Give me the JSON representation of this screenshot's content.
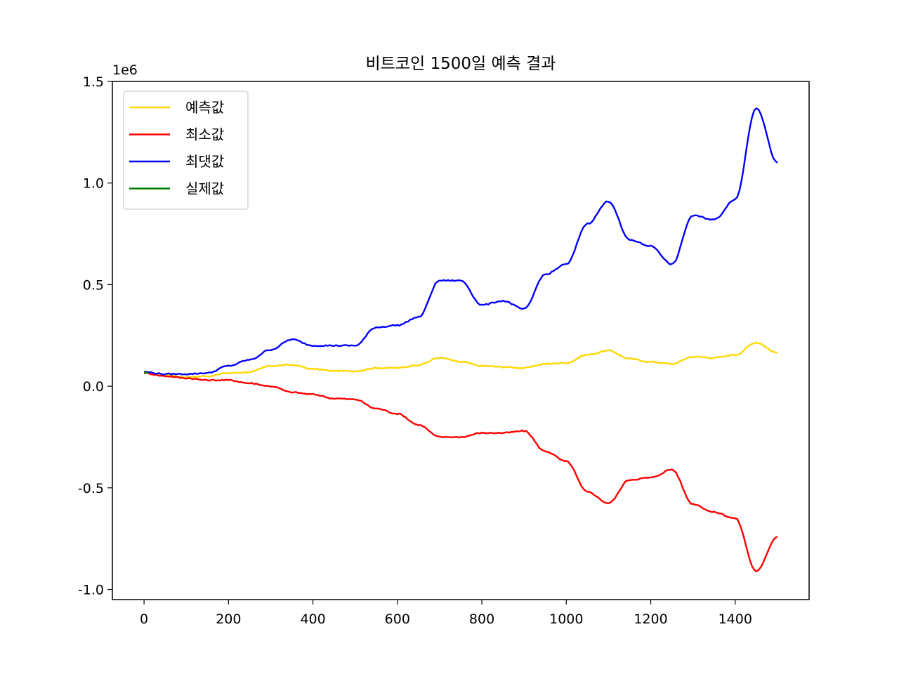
{
  "chart_data": {
    "type": "line",
    "title": "비트코인 1500일 예측 결과",
    "xlabel": "",
    "ylabel": "",
    "offset_label": "1e6",
    "xlim": [
      -75,
      1575
    ],
    "ylim": [
      -1.05,
      1.5
    ],
    "x_ticks": [
      0,
      200,
      400,
      600,
      800,
      1000,
      1200,
      1400
    ],
    "y_ticks": [
      -1.0,
      -0.5,
      0.0,
      0.5,
      1.0,
      1.5
    ],
    "y_tick_labels": [
      "-1.0",
      "-0.5",
      "0.0",
      "0.5",
      "1.0",
      "1.5"
    ],
    "grid": false,
    "legend_position": "upper left",
    "colors": {
      "예측값": "#ffd700",
      "최소값": "#ff0000",
      "최댓값": "#0000ff",
      "실제값": "#008000"
    },
    "series": [
      {
        "name": "예측값",
        "x": [
          0,
          50,
          100,
          150,
          200,
          250,
          300,
          350,
          400,
          450,
          500,
          550,
          600,
          650,
          700,
          750,
          800,
          850,
          900,
          950,
          1000,
          1050,
          1100,
          1150,
          1200,
          1250,
          1300,
          1350,
          1400,
          1450,
          1500
        ],
        "values": [
          0.07,
          0.055,
          0.045,
          0.05,
          0.065,
          0.07,
          0.1,
          0.105,
          0.085,
          0.075,
          0.075,
          0.09,
          0.09,
          0.105,
          0.14,
          0.12,
          0.1,
          0.095,
          0.09,
          0.11,
          0.115,
          0.155,
          0.175,
          0.135,
          0.12,
          0.11,
          0.145,
          0.14,
          0.155,
          0.215,
          0.165
        ]
      },
      {
        "name": "최소값",
        "x": [
          0,
          50,
          100,
          150,
          200,
          250,
          300,
          350,
          400,
          450,
          500,
          550,
          600,
          650,
          700,
          750,
          800,
          850,
          900,
          950,
          1000,
          1050,
          1100,
          1150,
          1200,
          1250,
          1300,
          1350,
          1400,
          1450,
          1500
        ],
        "values": [
          0.065,
          0.05,
          0.04,
          0.03,
          0.03,
          0.015,
          0.0,
          -0.03,
          -0.04,
          -0.06,
          -0.065,
          -0.11,
          -0.135,
          -0.19,
          -0.25,
          -0.25,
          -0.23,
          -0.23,
          -0.22,
          -0.32,
          -0.37,
          -0.52,
          -0.575,
          -0.46,
          -0.45,
          -0.41,
          -0.58,
          -0.62,
          -0.65,
          -0.91,
          -0.74
        ]
      },
      {
        "name": "최댓값",
        "x": [
          0,
          50,
          100,
          150,
          200,
          250,
          300,
          350,
          400,
          450,
          500,
          550,
          600,
          650,
          700,
          750,
          800,
          850,
          900,
          950,
          1000,
          1050,
          1100,
          1150,
          1200,
          1250,
          1300,
          1350,
          1400,
          1450,
          1500
        ],
        "values": [
          0.07,
          0.06,
          0.06,
          0.065,
          0.1,
          0.13,
          0.18,
          0.23,
          0.2,
          0.2,
          0.2,
          0.29,
          0.3,
          0.34,
          0.52,
          0.52,
          0.4,
          0.42,
          0.38,
          0.55,
          0.6,
          0.8,
          0.91,
          0.72,
          0.69,
          0.6,
          0.84,
          0.82,
          0.92,
          1.37,
          1.1
        ]
      },
      {
        "name": "실제값",
        "x": [
          0,
          5,
          10
        ],
        "values": [
          0.068,
          0.066,
          0.067
        ]
      }
    ]
  }
}
